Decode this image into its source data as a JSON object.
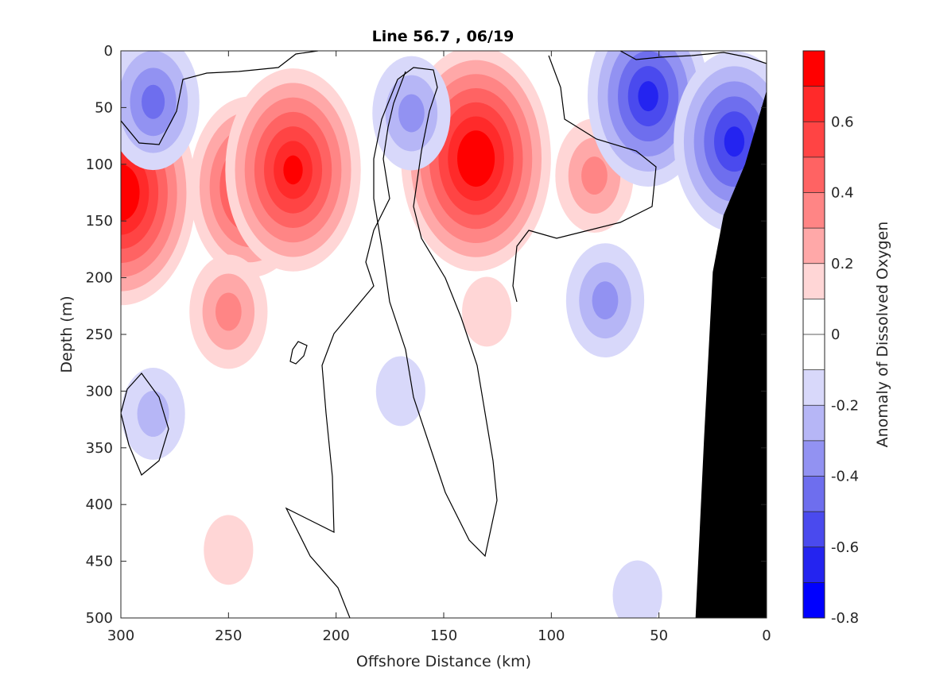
{
  "chart_data": {
    "type": "heatmap",
    "subtype": "filled-contour",
    "title": "Line 56.7 , 06/19",
    "xlabel": "Offshore Distance (km)",
    "ylabel": "Depth (m)",
    "colorbar_label": "Anomaly of Dissolved Oxygen",
    "xlim": [
      300,
      0
    ],
    "x_reversed": true,
    "ylim": [
      0,
      500
    ],
    "y_reversed": true,
    "x_ticks": [
      300,
      250,
      200,
      150,
      100,
      50,
      0
    ],
    "y_ticks": [
      0,
      50,
      100,
      150,
      200,
      250,
      300,
      350,
      400,
      450,
      500
    ],
    "colorbar_range": [
      -0.8,
      0.8
    ],
    "colorbar_ticks": [
      0.6,
      0.4,
      0.2,
      0,
      -0.2,
      -0.4,
      -0.6,
      -0.8
    ],
    "colorbar_levels": [
      {
        "lo": 0.7,
        "hi": 0.8,
        "color": "#ff0000"
      },
      {
        "lo": 0.6,
        "hi": 0.7,
        "color": "#ff2a2a"
      },
      {
        "lo": 0.5,
        "hi": 0.6,
        "color": "#ff4444"
      },
      {
        "lo": 0.4,
        "hi": 0.5,
        "color": "#ff6363"
      },
      {
        "lo": 0.3,
        "hi": 0.4,
        "color": "#ff8585"
      },
      {
        "lo": 0.2,
        "hi": 0.3,
        "color": "#ffa8a8"
      },
      {
        "lo": 0.1,
        "hi": 0.2,
        "color": "#ffd6d6"
      },
      {
        "lo": 0.0,
        "hi": 0.1,
        "color": "#ffffff"
      },
      {
        "lo": -0.1,
        "hi": 0.0,
        "color": "#ffffff"
      },
      {
        "lo": -0.2,
        "hi": -0.1,
        "color": "#d8d8fa"
      },
      {
        "lo": -0.3,
        "hi": -0.2,
        "color": "#b6b6f6"
      },
      {
        "lo": -0.4,
        "hi": -0.3,
        "color": "#9292f2"
      },
      {
        "lo": -0.5,
        "hi": -0.4,
        "color": "#6e6eee"
      },
      {
        "lo": -0.6,
        "hi": -0.5,
        "color": "#4a4aee"
      },
      {
        "lo": -0.7,
        "hi": -0.6,
        "color": "#2424f0"
      },
      {
        "lo": -0.8,
        "hi": -0.7,
        "color": "#0000ff"
      }
    ],
    "features": [
      {
        "kind": "positive",
        "x": 300,
        "y": 125,
        "peak": 0.75
      },
      {
        "kind": "positive",
        "x": 240,
        "y": 120,
        "peak": 0.55
      },
      {
        "kind": "positive",
        "x": 220,
        "y": 105,
        "peak": 0.65
      },
      {
        "kind": "positive",
        "x": 250,
        "y": 230,
        "peak": 0.3
      },
      {
        "kind": "positive",
        "x": 135,
        "y": 95,
        "peak": 0.8
      },
      {
        "kind": "positive",
        "x": 130,
        "y": 230,
        "peak": 0.15
      },
      {
        "kind": "positive",
        "x": 80,
        "y": 110,
        "peak": 0.25
      },
      {
        "kind": "positive",
        "x": 250,
        "y": 440,
        "peak": 0.12
      },
      {
        "kind": "negative",
        "x": 285,
        "y": 45,
        "peak": -0.4
      },
      {
        "kind": "negative",
        "x": 165,
        "y": 55,
        "peak": -0.25
      },
      {
        "kind": "negative",
        "x": 55,
        "y": 40,
        "peak": -0.55
      },
      {
        "kind": "negative",
        "x": 15,
        "y": 80,
        "peak": -0.55
      },
      {
        "kind": "negative",
        "x": 75,
        "y": 220,
        "peak": -0.3
      },
      {
        "kind": "negative",
        "x": 170,
        "y": 300,
        "peak": -0.15
      },
      {
        "kind": "negative",
        "x": 285,
        "y": 320,
        "peak": -0.2
      },
      {
        "kind": "negative",
        "x": 60,
        "y": 480,
        "peak": -0.12
      }
    ],
    "bathymetry": {
      "color": "#000000",
      "boundary": [
        [
          0,
          35
        ],
        [
          10,
          100
        ],
        [
          20,
          145
        ],
        [
          25,
          195
        ],
        [
          29,
          340
        ],
        [
          33,
          500
        ]
      ]
    }
  }
}
